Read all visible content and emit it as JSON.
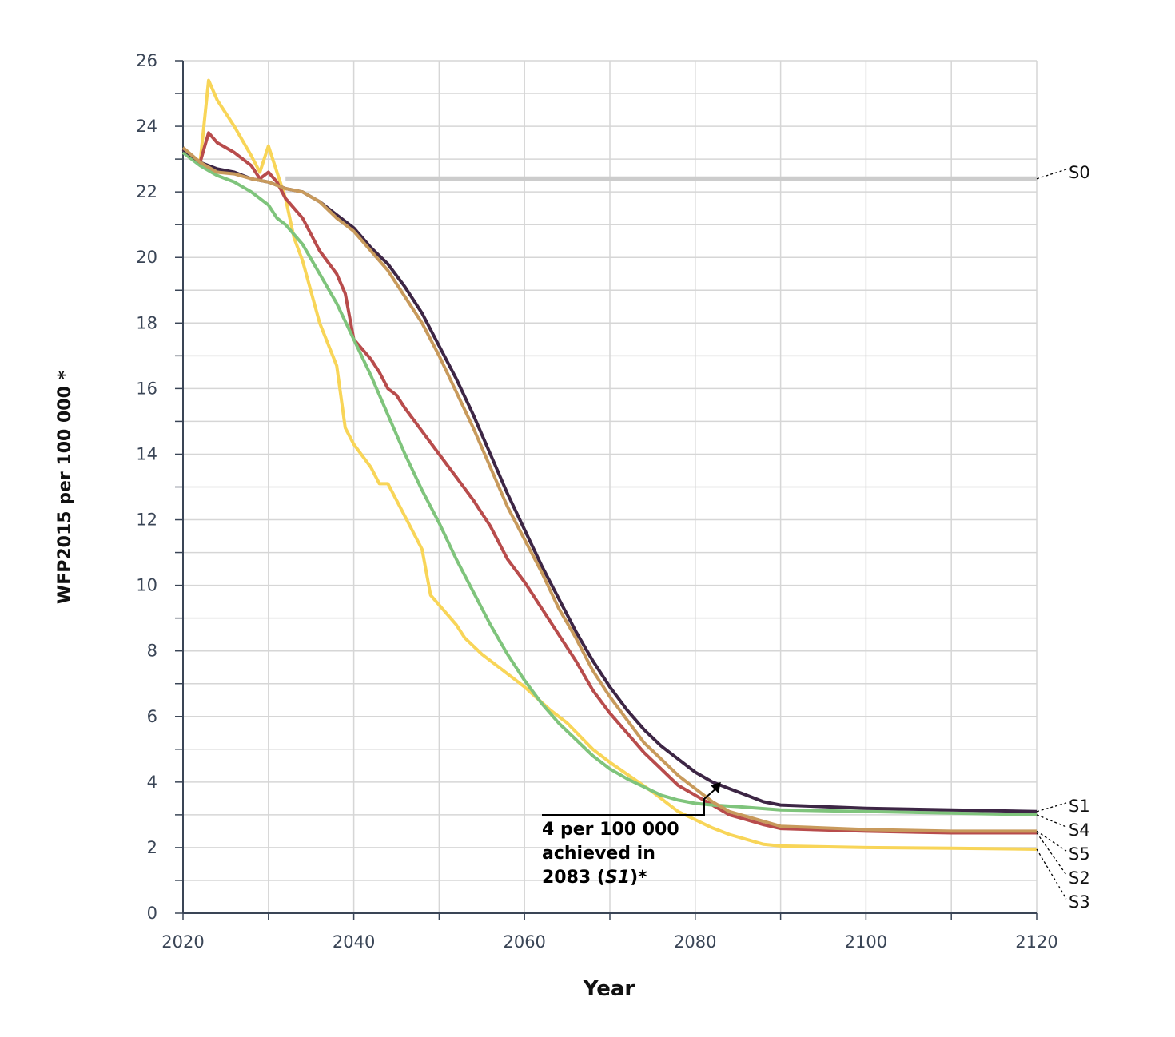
{
  "chart_data": {
    "type": "line",
    "title": "",
    "xlabel": "Year",
    "ylabel": "WFP2015 per 100 000 *",
    "xlim": [
      2020,
      2120
    ],
    "ylim": [
      0,
      26
    ],
    "x_ticks": [
      "2020",
      "2040",
      "2060",
      "2080",
      "2100",
      "2120"
    ],
    "y_ticks": [
      "0",
      "2",
      "4",
      "6",
      "8",
      "10",
      "12",
      "14",
      "16",
      "18",
      "20",
      "22",
      "24",
      "26"
    ],
    "grid": true,
    "legend": "direct labels at right end of lines",
    "series": [
      {
        "name": "S0",
        "color": "#cccccc",
        "x": [
          2032,
          2120
        ],
        "y": [
          22.4,
          22.4
        ]
      },
      {
        "name": "S3",
        "color": "#f8d558",
        "x": [
          2020,
          2022,
          2023,
          2024,
          2026,
          2028,
          2029,
          2030,
          2031,
          2032,
          2033,
          2034,
          2036,
          2038,
          2039,
          2040,
          2042,
          2043,
          2044,
          2046,
          2048,
          2049,
          2050,
          2052,
          2053,
          2055,
          2057,
          2060,
          2063,
          2065,
          2068,
          2070,
          2075,
          2078,
          2080,
          2082,
          2084,
          2086,
          2088,
          2090,
          2100,
          2110,
          2120
        ],
        "y": [
          23.3,
          22.9,
          25.4,
          24.8,
          24.0,
          23.1,
          22.6,
          23.4,
          22.6,
          21.8,
          20.6,
          19.9,
          18.0,
          16.7,
          14.8,
          14.3,
          13.6,
          13.1,
          13.1,
          12.1,
          11.1,
          9.7,
          9.4,
          8.8,
          8.4,
          7.9,
          7.5,
          6.9,
          6.2,
          5.8,
          5.0,
          4.6,
          3.7,
          3.1,
          2.85,
          2.6,
          2.4,
          2.25,
          2.1,
          2.05,
          2.0,
          1.98,
          1.95
        ]
      },
      {
        "name": "S2",
        "color": "#b84c4c",
        "x": [
          2020,
          2022,
          2023,
          2024,
          2026,
          2028,
          2029,
          2030,
          2031,
          2032,
          2034,
          2036,
          2038,
          2039,
          2040,
          2042,
          2043,
          2044,
          2045,
          2046,
          2048,
          2050,
          2052,
          2054,
          2056,
          2058,
          2060,
          2062,
          2064,
          2066,
          2068,
          2070,
          2072,
          2074,
          2076,
          2078,
          2080,
          2082,
          2084,
          2086,
          2088,
          2090,
          2100,
          2110,
          2120
        ],
        "y": [
          23.3,
          22.9,
          23.8,
          23.5,
          23.2,
          22.8,
          22.4,
          22.6,
          22.3,
          21.8,
          21.2,
          20.2,
          19.5,
          18.9,
          17.5,
          16.9,
          16.5,
          16.0,
          15.8,
          15.4,
          14.7,
          14.0,
          13.3,
          12.6,
          11.8,
          10.8,
          10.1,
          9.3,
          8.5,
          7.7,
          6.8,
          6.1,
          5.5,
          4.9,
          4.4,
          3.9,
          3.6,
          3.3,
          3.0,
          2.85,
          2.7,
          2.58,
          2.5,
          2.45,
          2.45
        ]
      },
      {
        "name": "S4",
        "color": "#7fc47c",
        "x": [
          2020,
          2022,
          2024,
          2026,
          2028,
          2030,
          2031,
          2032,
          2034,
          2036,
          2038,
          2040,
          2042,
          2044,
          2046,
          2048,
          2050,
          2052,
          2054,
          2056,
          2058,
          2060,
          2062,
          2064,
          2066,
          2068,
          2070,
          2072,
          2074,
          2076,
          2078,
          2080,
          2082,
          2085,
          2090,
          2100,
          2110,
          2120
        ],
        "y": [
          23.2,
          22.8,
          22.5,
          22.3,
          22.0,
          21.6,
          21.2,
          21.0,
          20.4,
          19.5,
          18.6,
          17.5,
          16.4,
          15.2,
          14.0,
          12.9,
          11.9,
          10.8,
          9.8,
          8.8,
          7.9,
          7.1,
          6.4,
          5.8,
          5.3,
          4.8,
          4.4,
          4.1,
          3.85,
          3.6,
          3.45,
          3.35,
          3.3,
          3.25,
          3.15,
          3.1,
          3.05,
          3.0
        ]
      },
      {
        "name": "S1",
        "color": "#3d2645",
        "x": [
          2020,
          2022,
          2024,
          2026,
          2028,
          2030,
          2032,
          2034,
          2036,
          2038,
          2040,
          2042,
          2044,
          2046,
          2048,
          2050,
          2052,
          2054,
          2056,
          2058,
          2060,
          2062,
          2064,
          2066,
          2068,
          2070,
          2072,
          2074,
          2076,
          2078,
          2080,
          2082,
          2084,
          2086,
          2088,
          2090,
          2100,
          2110,
          2120
        ],
        "y": [
          23.3,
          22.9,
          22.7,
          22.6,
          22.4,
          22.3,
          22.1,
          22.0,
          21.7,
          21.3,
          20.9,
          20.3,
          19.8,
          19.1,
          18.3,
          17.3,
          16.3,
          15.2,
          14.0,
          12.8,
          11.7,
          10.6,
          9.6,
          8.6,
          7.7,
          6.9,
          6.2,
          5.6,
          5.1,
          4.7,
          4.3,
          4.0,
          3.8,
          3.6,
          3.4,
          3.3,
          3.2,
          3.15,
          3.1
        ]
      },
      {
        "name": "S5",
        "color": "#c89a5c",
        "x": [
          2020,
          2022,
          2024,
          2026,
          2028,
          2030,
          2032,
          2034,
          2036,
          2038,
          2040,
          2044,
          2048,
          2050,
          2052,
          2054,
          2056,
          2058,
          2060,
          2062,
          2064,
          2066,
          2068,
          2070,
          2072,
          2074,
          2076,
          2078,
          2080,
          2082,
          2084,
          2086,
          2088,
          2090,
          2100,
          2110,
          2120
        ],
        "y": [
          23.35,
          22.9,
          22.6,
          22.55,
          22.4,
          22.3,
          22.1,
          22.0,
          21.7,
          21.2,
          20.8,
          19.6,
          18.0,
          17.0,
          15.9,
          14.8,
          13.6,
          12.4,
          11.4,
          10.4,
          9.3,
          8.4,
          7.4,
          6.6,
          5.9,
          5.2,
          4.7,
          4.2,
          3.8,
          3.4,
          3.1,
          2.95,
          2.8,
          2.65,
          2.55,
          2.5,
          2.5
        ]
      }
    ],
    "annotations": [
      {
        "lines": [
          "4 per 100 000",
          "achieved in"
        ],
        "last_line_prefix": "2083 (",
        "last_line_italic": "S1",
        "last_line_suffix": ")*",
        "points_to": {
          "x": 2083,
          "y": 4.0
        }
      }
    ],
    "right_labels": [
      "S0",
      "S1",
      "S4",
      "S5",
      "S2",
      "S3"
    ]
  }
}
